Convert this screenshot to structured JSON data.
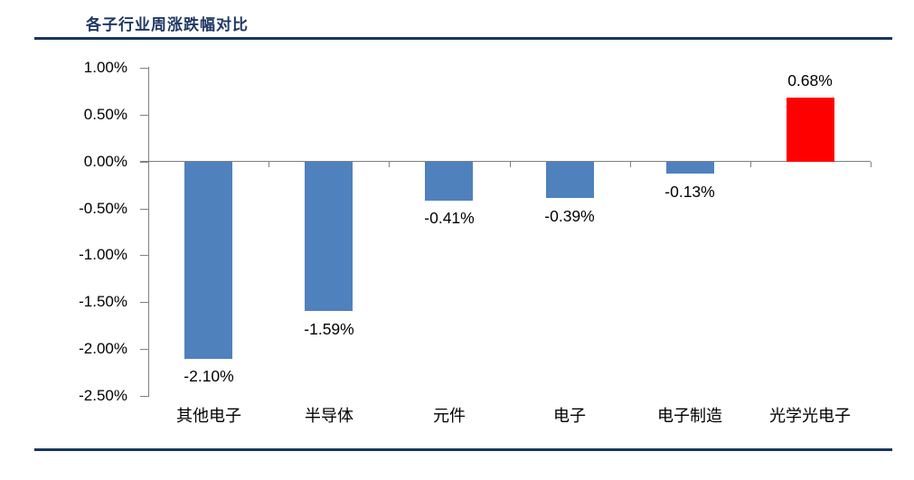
{
  "header": {
    "title": "各子行业周涨跌幅对比"
  },
  "colors": {
    "title": "#1F3864",
    "rule": "#17375E",
    "axis": "#808080",
    "bar_negative": "#4F81BD",
    "bar_positive": "#FF0000",
    "label_text": "#000000"
  },
  "chart_data": {
    "type": "bar",
    "title": "各子行业周涨跌幅对比",
    "categories": [
      "其他电子",
      "半导体",
      "元件",
      "电子",
      "电子制造",
      "光学光电子"
    ],
    "values": [
      -2.1,
      -1.59,
      -0.41,
      -0.39,
      -0.13,
      0.68
    ],
    "data_labels": [
      "-2.10%",
      "-1.59%",
      "-0.41%",
      "-0.39%",
      "-0.13%",
      "0.68%"
    ],
    "bar_colors": [
      "#4F81BD",
      "#4F81BD",
      "#4F81BD",
      "#4F81BD",
      "#4F81BD",
      "#FF0000"
    ],
    "xlabel": "",
    "ylabel": "",
    "ylim": [
      -2.5,
      1.0
    ],
    "ytick_step": 0.5,
    "ytick_labels": [
      "1.00%",
      "0.50%",
      "0.00%",
      "-0.50%",
      "-1.00%",
      "-1.50%",
      "-2.00%",
      "-2.50%"
    ],
    "grid": false,
    "legend": false
  }
}
